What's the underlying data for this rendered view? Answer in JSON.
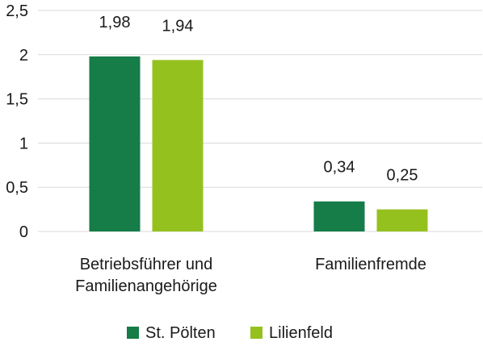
{
  "chart_data": {
    "type": "bar",
    "categories": [
      [
        "Betriebsführer und",
        "Familienangehörige"
      ],
      [
        "Familienfremde"
      ]
    ],
    "series": [
      {
        "name": "St. Pölten",
        "values": [
          1.98,
          0.34
        ],
        "value_labels": [
          "1,98",
          "0,34"
        ],
        "color": "#167c48"
      },
      {
        "name": "Lilienfeld",
        "values": [
          1.94,
          0.25
        ],
        "value_labels": [
          "1,94",
          "0,25"
        ],
        "color": "#95c11f"
      }
    ],
    "y_ticks": [
      {
        "value": 0,
        "label": "0"
      },
      {
        "value": 0.5,
        "label": "0,5"
      },
      {
        "value": 1,
        "label": "1"
      },
      {
        "value": 1.5,
        "label": "1,5"
      },
      {
        "value": 2,
        "label": "2"
      },
      {
        "value": 2.5,
        "label": "2,5"
      }
    ],
    "ylim": [
      0,
      2.5
    ],
    "grid": true,
    "gridline_color": "#d9d9d9",
    "legend_position": "bottom",
    "title": "",
    "xlabel": "",
    "ylabel": ""
  }
}
